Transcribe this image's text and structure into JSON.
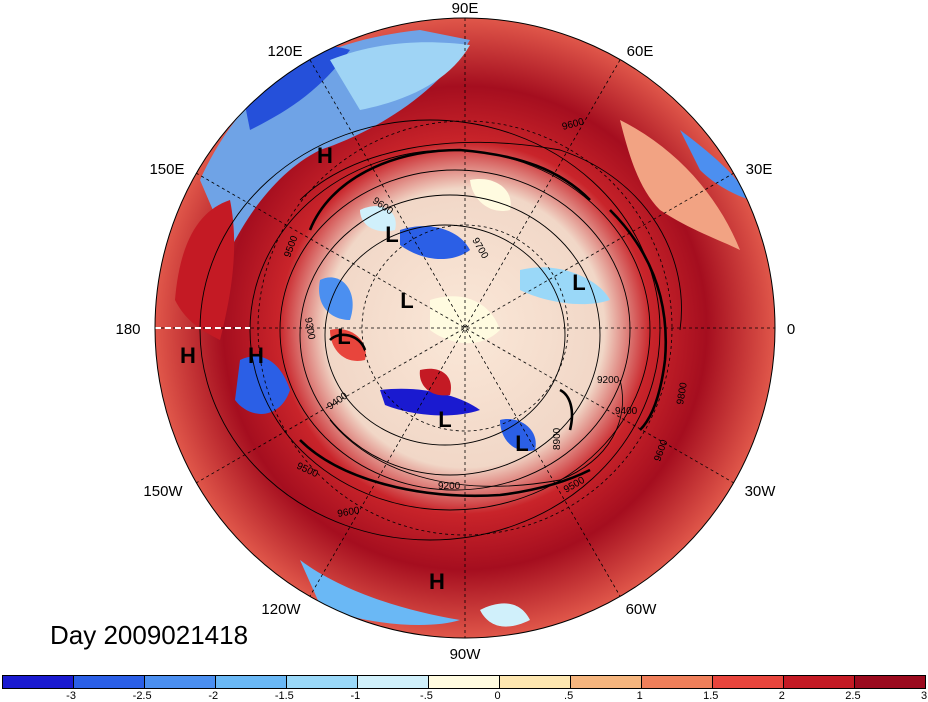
{
  "title": "Day 2009021418",
  "longitude_labels": {
    "e90": "90E",
    "e120": "120E",
    "e60": "60E",
    "e150": "150E",
    "e30": "30E",
    "w180": "180",
    "zero": "0",
    "w150": "150W",
    "w30": "30W",
    "w120": "120W",
    "w60": "60W",
    "w90": "90W"
  },
  "pressure_systems": [
    {
      "type": "H"
    },
    {
      "type": "H"
    },
    {
      "type": "H"
    },
    {
      "type": "H"
    },
    {
      "type": "L"
    },
    {
      "type": "L"
    },
    {
      "type": "L"
    },
    {
      "type": "L"
    },
    {
      "type": "L"
    },
    {
      "type": "L"
    }
  ],
  "contour_labels": [
    "9600",
    "9600",
    "9500",
    "9300",
    "9700",
    "9200",
    "9400",
    "9400",
    "9500",
    "9200",
    "9600",
    "8900",
    "9600",
    "9800",
    "9500"
  ],
  "colorbar": {
    "colors": [
      "#1a1ad0",
      "#2b5fe6",
      "#4b8ff0",
      "#6ab8f5",
      "#9ad8f8",
      "#d0f0fb",
      "#fffbe0",
      "#fde6b0",
      "#f5b57e",
      "#ef7f5a",
      "#e8453c",
      "#c41a24",
      "#9b0a1e"
    ],
    "ticks": [
      "-3",
      "-2.5",
      "-2",
      "-1.5",
      "-1",
      "-.5",
      "0",
      ".5",
      "1",
      "1.5",
      "2",
      "2.5",
      "3"
    ]
  }
}
